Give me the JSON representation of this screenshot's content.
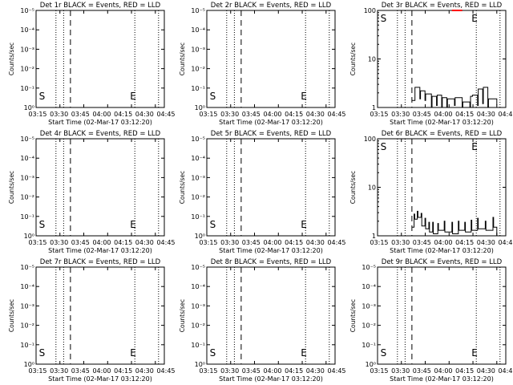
{
  "figure": {
    "xlabel": "Start Time (02-Mar-17 03:12:20)",
    "ylabel": "Counts/sec",
    "xticks": [
      "03:15",
      "03:30",
      "03:45",
      "04:00",
      "04:15",
      "04:30",
      "04:45"
    ],
    "colors": {
      "events": "#000000",
      "lld": "#ff0000"
    }
  },
  "chart_data": [
    {
      "type": "line",
      "title": "Det 1r BLACK = Events, RED = LLD",
      "scale": "log",
      "yticks": [
        "10⁰",
        "10⁻¹",
        "10⁻²",
        "10⁻³",
        "10⁻⁴",
        "10⁻⁵"
      ],
      "markers": {
        "start_label": "S",
        "end_label": "E"
      },
      "series": []
    },
    {
      "type": "line",
      "title": "Det 2r BLACK = Events, RED = LLD",
      "scale": "log",
      "yticks": [
        "10⁰",
        "10⁻¹",
        "10⁻²",
        "10⁻³",
        "10⁻⁴",
        "10⁻⁵"
      ],
      "markers": {
        "start_label": "S",
        "end_label": "E"
      },
      "series": []
    },
    {
      "type": "line",
      "title": "Det 3r BLACK = Events, RED = LLD",
      "scale": "log",
      "yticks": [
        "1",
        "10",
        "100"
      ],
      "ylim": [
        1,
        100
      ],
      "markers": {
        "start_label": "S",
        "end_label": "E"
      },
      "series": [
        {
          "color": "#000000",
          "x": [
            0.268,
            0.29,
            0.292,
            0.33,
            0.335,
            0.37,
            0.375,
            0.42,
            0.425,
            0.46,
            0.465,
            0.5,
            0.505,
            0.54,
            0.545,
            0.6,
            0.605,
            0.66,
            0.665,
            0.72,
            0.725,
            0.74,
            0.78,
            0.785,
            0.82,
            0.825,
            0.86,
            0.865,
            0.93
          ],
          "y": [
            1.4,
            1.4,
            2.6,
            1.5,
            2.2,
            1.4,
            1.9,
            1.0,
            1.7,
            1.1,
            1.8,
            1.0,
            1.6,
            1.0,
            1.5,
            1.1,
            1.6,
            1.0,
            1.3,
            1.0,
            1.7,
            1.8,
            1.1,
            2.4,
            1.2,
            2.6,
            1.0,
            1.5,
            1.1
          ]
        },
        {
          "color": "#ff0000",
          "x": [
            0.58,
            0.66
          ],
          "y": [
            100,
            100
          ]
        }
      ]
    },
    {
      "type": "line",
      "title": "Det 4r BLACK = Events, RED = LLD",
      "scale": "log",
      "yticks": [
        "10⁰",
        "10⁻¹",
        "10⁻²",
        "10⁻³",
        "10⁻⁴",
        "10⁻⁵"
      ],
      "markers": {
        "start_label": "S",
        "end_label": "E"
      },
      "series": []
    },
    {
      "type": "line",
      "title": "Det 5r BLACK = Events, RED = LLD",
      "scale": "log",
      "yticks": [
        "10⁰",
        "10⁻¹",
        "10⁻²",
        "10⁻³",
        "10⁻⁴",
        "10⁻⁵"
      ],
      "markers": {
        "start_label": "S",
        "end_label": "E"
      },
      "series": []
    },
    {
      "type": "line",
      "title": "Det 6r BLACK = Events, RED = LLD",
      "scale": "log",
      "yticks": [
        "1",
        "10",
        "100"
      ],
      "ylim": [
        1,
        100
      ],
      "markers": {
        "start_label": "S",
        "end_label": "E"
      },
      "series": [
        {
          "color": "#000000",
          "x": [
            0.268,
            0.285,
            0.29,
            0.31,
            0.315,
            0.34,
            0.345,
            0.37,
            0.375,
            0.4,
            0.405,
            0.43,
            0.435,
            0.47,
            0.475,
            0.52,
            0.525,
            0.58,
            0.585,
            0.63,
            0.635,
            0.68,
            0.685,
            0.73,
            0.735,
            0.78,
            0.785,
            0.84,
            0.845,
            0.9,
            0.905,
            0.93
          ],
          "y": [
            1.5,
            2.8,
            2.2,
            3.2,
            2.4,
            2.9,
            1.6,
            2.3,
            1.4,
            1.9,
            1.2,
            1.9,
            1.1,
            1.8,
            1.3,
            2.0,
            1.2,
            1.9,
            1.1,
            2.0,
            1.3,
            1.9,
            1.2,
            2.1,
            1.3,
            2.3,
            1.4,
            2.0,
            1.3,
            2.4,
            1.5,
            1.0
          ]
        }
      ]
    },
    {
      "type": "line",
      "title": "Det 7r BLACK = Events, RED = LLD",
      "scale": "log",
      "yticks": [
        "10⁰",
        "10⁻¹",
        "10⁻²",
        "10⁻³",
        "10⁻⁴",
        "10⁻⁵"
      ],
      "markers": {
        "start_label": "S",
        "end_label": "E"
      },
      "series": []
    },
    {
      "type": "line",
      "title": "Det 8r BLACK = Events, RED = LLD",
      "scale": "log",
      "yticks": [
        "10⁰",
        "10⁻¹",
        "10⁻²",
        "10⁻³",
        "10⁻⁴",
        "10⁻⁵"
      ],
      "markers": {
        "start_label": "S",
        "end_label": "E"
      },
      "series": []
    },
    {
      "type": "line",
      "title": "Det 9r BLACK = Events, RED = LLD",
      "scale": "log",
      "yticks": [
        "10⁰",
        "10⁻¹",
        "10⁻²",
        "10⁻³",
        "10⁻⁴",
        "10⁻⁵"
      ],
      "markers": {
        "start_label": "S",
        "end_label": "E"
      },
      "series": []
    }
  ]
}
